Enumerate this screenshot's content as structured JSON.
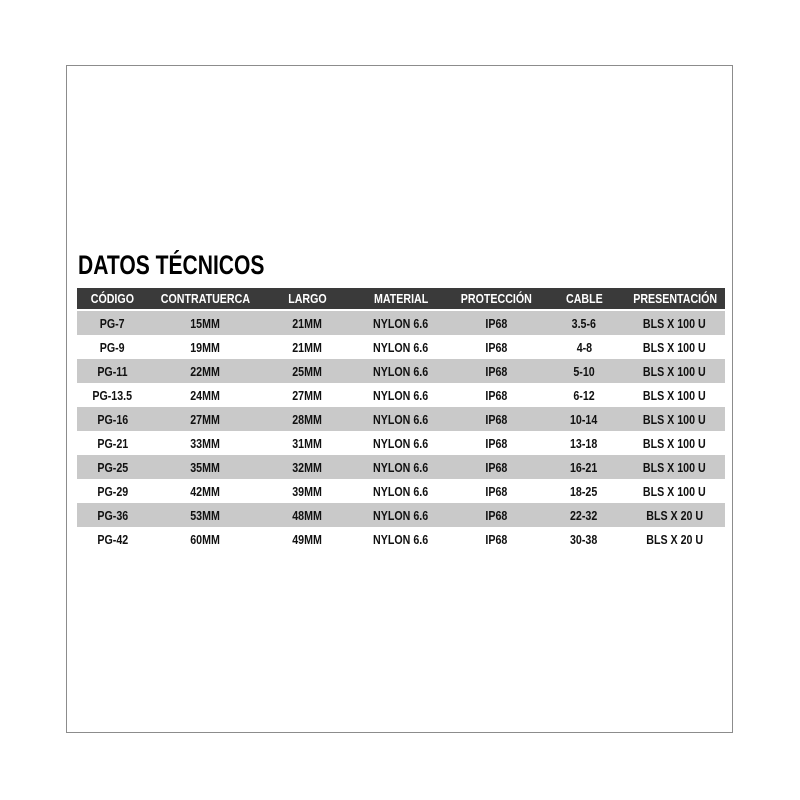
{
  "title": "DATOS TÉCNICOS",
  "colors": {
    "header_bg": "#3a3a3a",
    "header_text": "#ffffff",
    "row_alt_bg": "#c9c9c9",
    "row_bg": "#ffffff",
    "text": "#111111",
    "frame_border": "#8c8c8c"
  },
  "table": {
    "columns": [
      "CÓDIGO",
      "CONTRATUERCA",
      "LARGO",
      "MATERIAL",
      "PROTECCIÓN",
      "CABLE",
      "PRESENTACIÓN"
    ],
    "column_keys": [
      "codigo",
      "contratuerca",
      "largo",
      "material",
      "proteccion",
      "cable",
      "presentacion"
    ],
    "rows": [
      [
        "PG-7",
        "15MM",
        "21MM",
        "NYLON 6.6",
        "IP68",
        "3.5-6",
        "BLS X 100 U"
      ],
      [
        "PG-9",
        "19MM",
        "21MM",
        "NYLON 6.6",
        "IP68",
        "4-8",
        "BLS X 100 U"
      ],
      [
        "PG-11",
        "22MM",
        "25MM",
        "NYLON 6.6",
        "IP68",
        "5-10",
        "BLS X 100 U"
      ],
      [
        "PG-13.5",
        "24MM",
        "27MM",
        "NYLON 6.6",
        "IP68",
        "6-12",
        "BLS X 100 U"
      ],
      [
        "PG-16",
        "27MM",
        "28MM",
        "NYLON 6.6",
        "IP68",
        "10-14",
        "BLS X 100 U"
      ],
      [
        "PG-21",
        "33MM",
        "31MM",
        "NYLON 6.6",
        "IP68",
        "13-18",
        "BLS X 100 U"
      ],
      [
        "PG-25",
        "35MM",
        "32MM",
        "NYLON 6.6",
        "IP68",
        "16-21",
        "BLS X 100 U"
      ],
      [
        "PG-29",
        "42MM",
        "39MM",
        "NYLON 6.6",
        "IP68",
        "18-25",
        "BLS X 100 U"
      ],
      [
        "PG-36",
        "53MM",
        "48MM",
        "NYLON 6.6",
        "IP68",
        "22-32",
        "BLS X 20 U"
      ],
      [
        "PG-42",
        "60MM",
        "49MM",
        "NYLON 6.6",
        "IP68",
        "30-38",
        "BLS X 20 U"
      ]
    ]
  }
}
